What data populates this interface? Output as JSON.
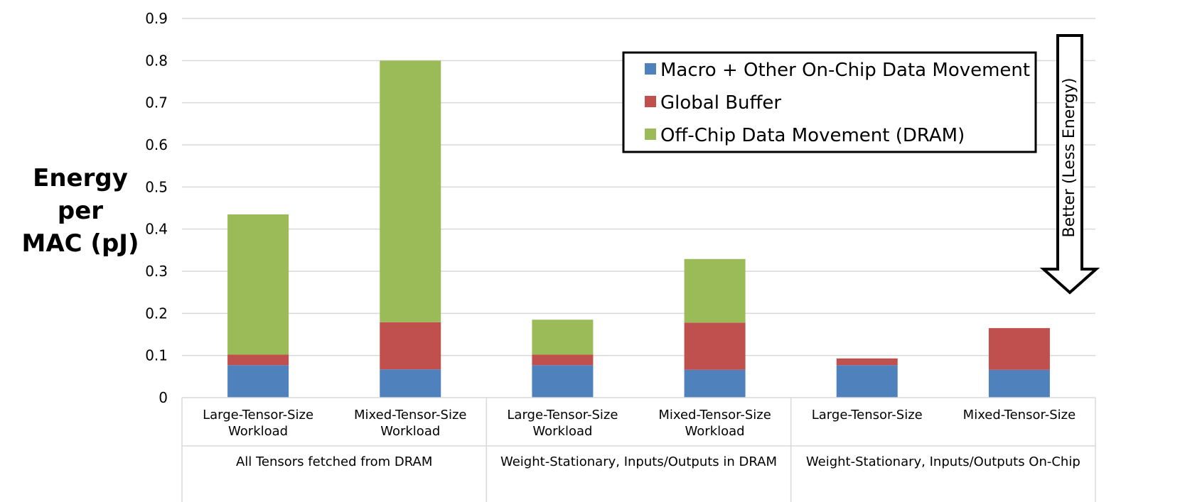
{
  "chart_data": {
    "type": "bar",
    "stacked": true,
    "ylabel_lines": [
      "Energy",
      "per",
      "MAC (pJ)"
    ],
    "ylim": [
      0,
      0.9
    ],
    "yticks": [
      "0",
      "0.1",
      "0.2",
      "0.3",
      "0.4",
      "0.5",
      "0.6",
      "0.7",
      "0.8",
      "0.9"
    ],
    "grid": true,
    "legend_position": "top-right",
    "categories": [
      [
        "Large-Tensor-Size",
        "Workload"
      ],
      [
        "Mixed-Tensor-Size",
        "Workload"
      ],
      [
        "Large-Tensor-Size",
        "Workload"
      ],
      [
        "Mixed-Tensor-Size",
        "Workload"
      ],
      [
        "Large-Tensor-Size"
      ],
      [
        "Mixed-Tensor-Size"
      ]
    ],
    "groups": [
      "All Tensors fetched from DRAM",
      "Weight-Stationary, Inputs/Outputs in DRAM",
      "Weight-Stationary, Inputs/Outputs On-Chip"
    ],
    "series": [
      {
        "name": "Macro + Other On-Chip Data Movement",
        "color": "#4f81bd",
        "values": [
          0.077,
          0.067,
          0.077,
          0.066,
          0.077,
          0.066
        ]
      },
      {
        "name": "Global Buffer",
        "color": "#c0504d",
        "values": [
          0.025,
          0.112,
          0.025,
          0.112,
          0.016,
          0.099
        ]
      },
      {
        "name": "Off-Chip Data Movement (DRAM)",
        "color": "#9bbb59",
        "values": [
          0.333,
          0.621,
          0.083,
          0.151,
          0,
          0
        ]
      }
    ],
    "annotation": "Better (Less Energy)"
  }
}
